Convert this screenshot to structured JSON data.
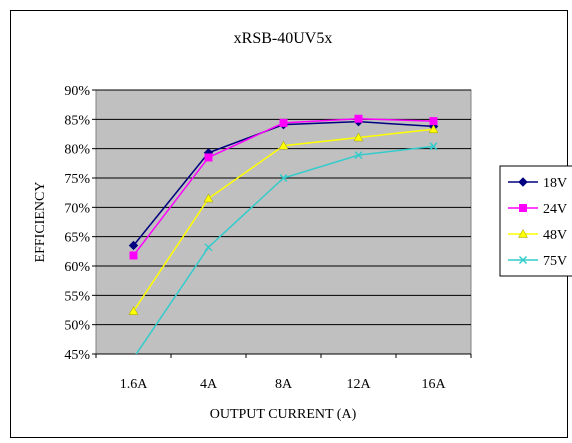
{
  "chart_data": {
    "type": "line",
    "title": "xRSB-40UV5x",
    "xlabel": "OUTPUT CURRENT (A)",
    "ylabel": "EFFICIENCY",
    "categories": [
      "1.6A",
      "4A",
      "8A",
      "12A",
      "16A"
    ],
    "yticks": [
      "45%",
      "50%",
      "55%",
      "60%",
      "65%",
      "70%",
      "75%",
      "80%",
      "85%",
      "90%"
    ],
    "ylim": [
      45,
      90
    ],
    "grid": true,
    "plot_background": "#c0c0c0",
    "legend_position": "right",
    "series": [
      {
        "name": "18V",
        "values": [
          63.5,
          79.3,
          84.1,
          84.6,
          83.8
        ],
        "color": "#000080",
        "marker": "diamond"
      },
      {
        "name": "24V",
        "values": [
          61.8,
          78.5,
          84.4,
          85.1,
          84.7
        ],
        "color": "#ff00ff",
        "marker": "square"
      },
      {
        "name": "48V",
        "values": [
          52.3,
          71.5,
          80.5,
          81.9,
          83.3
        ],
        "color": "#ffff00",
        "marker": "triangle"
      },
      {
        "name": "75V",
        "values": [
          44.3,
          63.2,
          75.0,
          78.9,
          80.4
        ],
        "color": "#33cccc",
        "marker": "x"
      }
    ]
  }
}
